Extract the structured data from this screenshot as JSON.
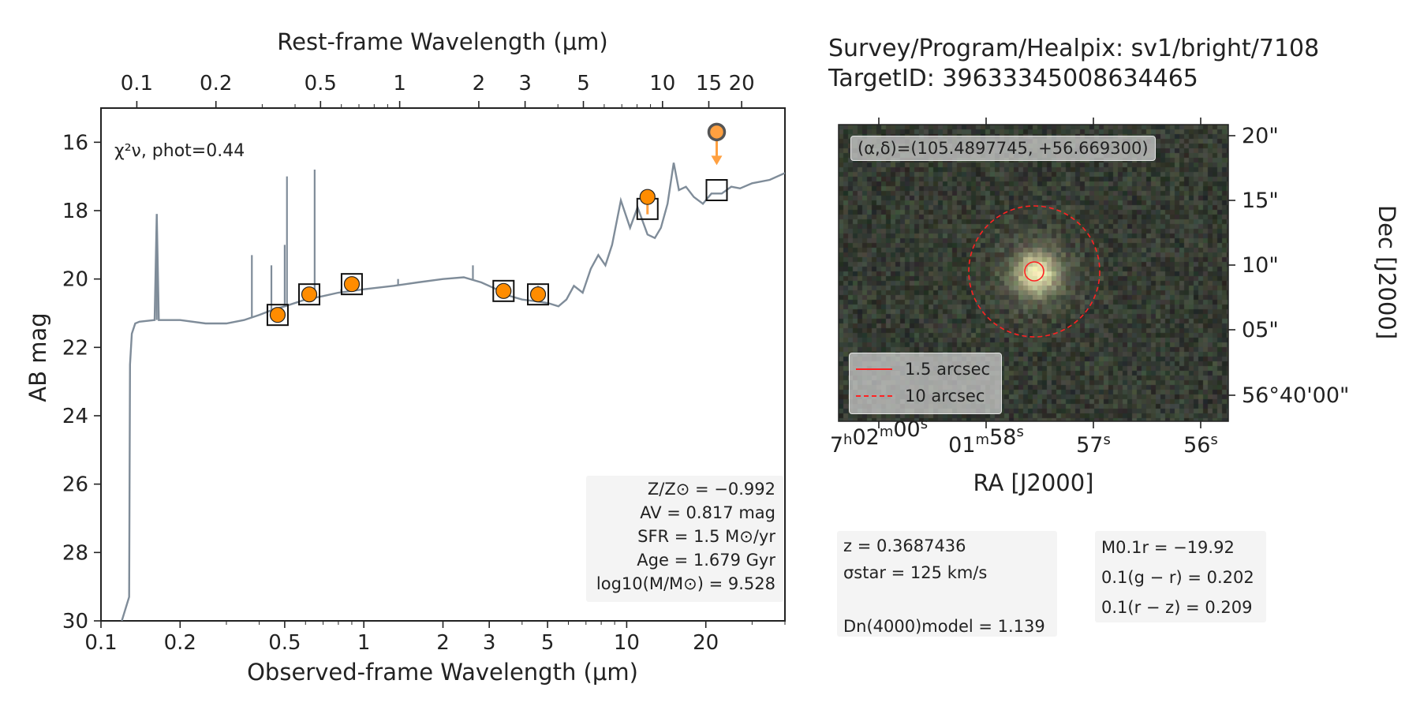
{
  "chart_data": [
    {
      "type": "scatter",
      "title": "",
      "xlabel": "Observed-frame Wavelength (μm)",
      "x2label": "Rest-frame Wavelength (μm)",
      "ylabel": "AB mag",
      "xscale": "log",
      "xlim": [
        0.1,
        40
      ],
      "ylim": [
        30,
        15
      ],
      "x_ticks": [
        "0.1",
        "0.2",
        "0.5",
        "1",
        "2",
        "3",
        "5",
        "10",
        "20"
      ],
      "x2_ticks": [
        "0.1",
        "0.2",
        "0.5",
        "1",
        "2",
        "3",
        "5",
        "10",
        "15",
        "20"
      ],
      "y_ticks": [
        "16",
        "18",
        "20",
        "22",
        "24",
        "26",
        "28",
        "30"
      ],
      "chi2_label": "χ²ν, phot=0.44",
      "model_spectrum": {
        "color": "#7f8c99",
        "points": [
          [
            0.12,
            30
          ],
          [
            0.128,
            29.3
          ],
          [
            0.129,
            22.5
          ],
          [
            0.131,
            21.6
          ],
          [
            0.135,
            21.3
          ],
          [
            0.14,
            21.25
          ],
          [
            0.16,
            21.2
          ],
          [
            0.163,
            18.1
          ],
          [
            0.166,
            21.2
          ],
          [
            0.2,
            21.2
          ],
          [
            0.25,
            21.3
          ],
          [
            0.3,
            21.3
          ],
          [
            0.35,
            21.2
          ],
          [
            0.4,
            21.05
          ],
          [
            0.45,
            20.9
          ],
          [
            0.5,
            20.8
          ],
          [
            0.6,
            20.6
          ],
          [
            0.7,
            20.5
          ],
          [
            0.8,
            20.4
          ],
          [
            0.9,
            20.35
          ],
          [
            1.0,
            20.3
          ],
          [
            1.3,
            20.2
          ],
          [
            1.6,
            20.1
          ],
          [
            2.0,
            20.0
          ],
          [
            2.4,
            19.95
          ],
          [
            2.8,
            20.1
          ],
          [
            3.2,
            20.3
          ],
          [
            3.6,
            20.5
          ],
          [
            4.0,
            20.6
          ],
          [
            4.5,
            20.65
          ],
          [
            5.0,
            20.7
          ],
          [
            5.5,
            20.8
          ],
          [
            5.9,
            20.6
          ],
          [
            6.3,
            20.2
          ],
          [
            6.8,
            20.4
          ],
          [
            7.3,
            19.7
          ],
          [
            7.8,
            19.3
          ],
          [
            8.3,
            19.6
          ],
          [
            8.8,
            19.0
          ],
          [
            9.5,
            17.7
          ],
          [
            10.3,
            18.5
          ],
          [
            11.0,
            17.9
          ],
          [
            12.0,
            18.7
          ],
          [
            12.8,
            18.8
          ],
          [
            13.5,
            18.5
          ],
          [
            14.3,
            17.8
          ],
          [
            15.1,
            16.6
          ],
          [
            15.8,
            17.4
          ],
          [
            16.8,
            17.3
          ],
          [
            18.0,
            17.6
          ],
          [
            19.5,
            17.8
          ],
          [
            21.0,
            17.5
          ],
          [
            23.0,
            17.5
          ],
          [
            25.0,
            17.3
          ],
          [
            27.0,
            17.35
          ],
          [
            30.0,
            17.2
          ],
          [
            35.0,
            17.1
          ],
          [
            40.0,
            16.9
          ]
        ],
        "emission_lines": [
          [
            0.163,
            18.1
          ],
          [
            0.375,
            19.3
          ],
          [
            0.43,
            20.8
          ],
          [
            0.445,
            19.6
          ],
          [
            0.5,
            19.0
          ],
          [
            0.51,
            17.0
          ],
          [
            0.6,
            20.4
          ],
          [
            0.65,
            16.8
          ],
          [
            0.68,
            20.5
          ],
          [
            0.82,
            20.3
          ],
          [
            0.98,
            20.3
          ],
          [
            1.35,
            20.0
          ],
          [
            1.45,
            20.15
          ],
          [
            2.6,
            19.6
          ],
          [
            3.5,
            20.5
          ],
          [
            4.4,
            20.3
          ],
          [
            4.6,
            20.2
          ]
        ]
      },
      "observed_photometry": {
        "color": "#ff8c00",
        "points": [
          [
            0.47,
            21.05
          ],
          [
            0.62,
            20.45
          ],
          [
            0.9,
            20.15
          ],
          [
            3.4,
            20.35
          ],
          [
            4.6,
            20.45
          ],
          [
            12.0,
            17.6
          ]
        ]
      },
      "upper_limit": {
        "x": 22.0,
        "y": 15.7
      },
      "model_photometry": [
        [
          0.47,
          21.05
        ],
        [
          0.62,
          20.45
        ],
        [
          0.9,
          20.15
        ],
        [
          3.4,
          20.35
        ],
        [
          4.6,
          20.45
        ],
        [
          12.0,
          17.95
        ],
        [
          22.0,
          17.4
        ]
      ],
      "legend_box": {
        "metallicity": "Z/Z⊙ = −0.992",
        "av": "AV = 0.817 mag",
        "sfr": "SFR = 1.5 M⊙/yr",
        "age": "Age = 1.679 Gyr",
        "mass": "log10(M/M⊙) = 9.528"
      }
    }
  ],
  "header": {
    "line1": "Survey/Program/Healpix: sv1/bright/7108",
    "line2": "TargetID: 39633345008634465"
  },
  "cutout": {
    "coords_label": "(α,δ)=(105.4897745, +56.669300)",
    "legend": [
      "1.5 arcsec",
      "10 arcsec"
    ],
    "ra_label": "RA [J2000]",
    "dec_label": "Dec [J2000]",
    "ra_ticks": [
      "7h02m00s",
      "01m58s",
      "57s",
      "56s"
    ],
    "dec_ticks": [
      "20\"",
      "15\"",
      "10\"",
      "05\"",
      "56°40'00\""
    ],
    "circle_color": "#ff2222"
  },
  "info_left": {
    "z": "z = 0.3687436",
    "sigma": "σstar = 125 km/s",
    "dn4000": "Dn(4000)model = 1.139"
  },
  "info_right": {
    "mr": "M0.1r = −19.92",
    "gr": "0.1(g − r) = 0.202",
    "rz": "0.1(r − z) = 0.209"
  }
}
